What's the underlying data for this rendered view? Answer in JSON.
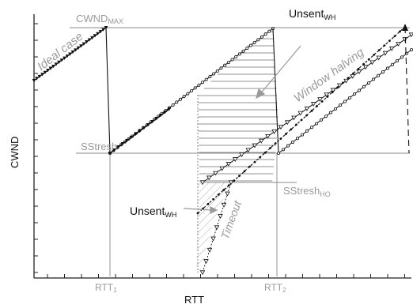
{
  "axes": {
    "x_label": "RTT",
    "y_label": "CWND"
  },
  "markers": {
    "cwnd_max": {
      "main": "CWND",
      "sub": "MAX"
    },
    "sstresh": "SStresh",
    "sstresh_ho": {
      "main": "SStresh",
      "sub": "HO"
    },
    "rtt1": {
      "main": "RTT",
      "sub": "1"
    },
    "rtt2": {
      "main": "RTT",
      "sub": "2"
    }
  },
  "annotations": {
    "ideal_case": "Ideal case",
    "window_halving": "Window halving",
    "timeout": "Timeout",
    "unsent_top": {
      "main": "Unsent",
      "sub": "WH"
    },
    "unsent_bottom": {
      "main": "Unsent",
      "sub": "WH"
    }
  },
  "colors": {
    "axis": "#222222",
    "gray_text": "#9a9a9a",
    "line": "#111111",
    "guide": "#888888"
  }
}
